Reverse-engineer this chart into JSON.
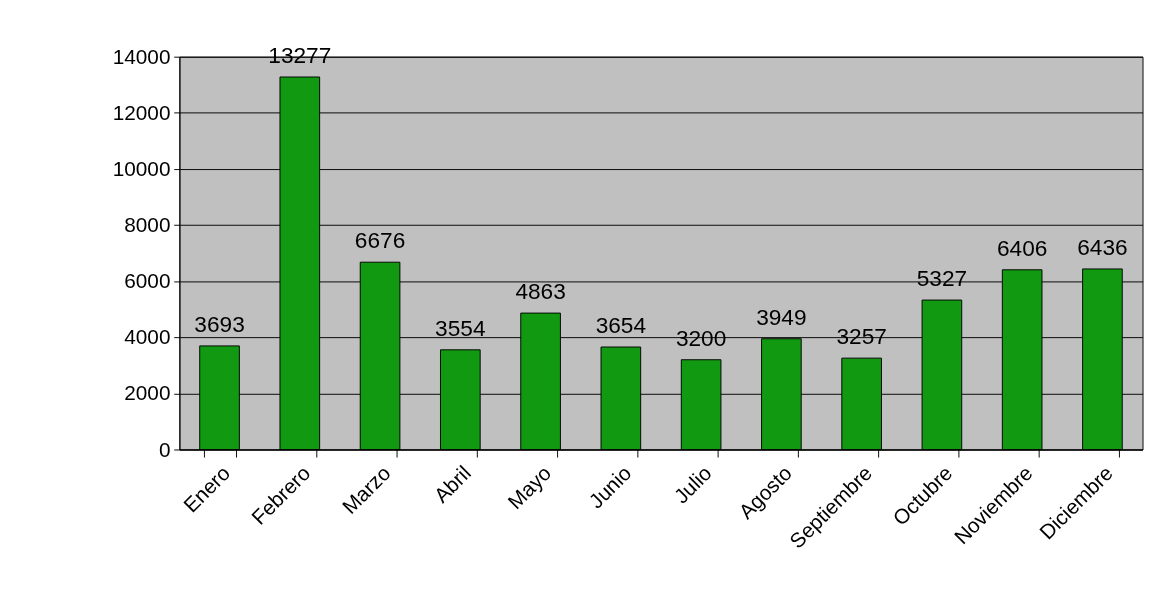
{
  "chart_data": {
    "type": "bar",
    "categories": [
      "Enero",
      "Febrero",
      "Marzo",
      "Abril",
      "Mayo",
      "Junio",
      "Julio",
      "Agosto",
      "Septiembre",
      "Octubre",
      "Noviembre",
      "Diciembre"
    ],
    "values": [
      3693,
      13277,
      6676,
      3554,
      4863,
      3654,
      3200,
      3949,
      3257,
      5327,
      6406,
      6436
    ],
    "color": "#119911",
    "ylim": [
      0,
      14000
    ],
    "yticks": [
      0,
      2000,
      4000,
      6000,
      8000,
      10000,
      12000,
      14000
    ],
    "grid": "y",
    "data_labels": true
  }
}
